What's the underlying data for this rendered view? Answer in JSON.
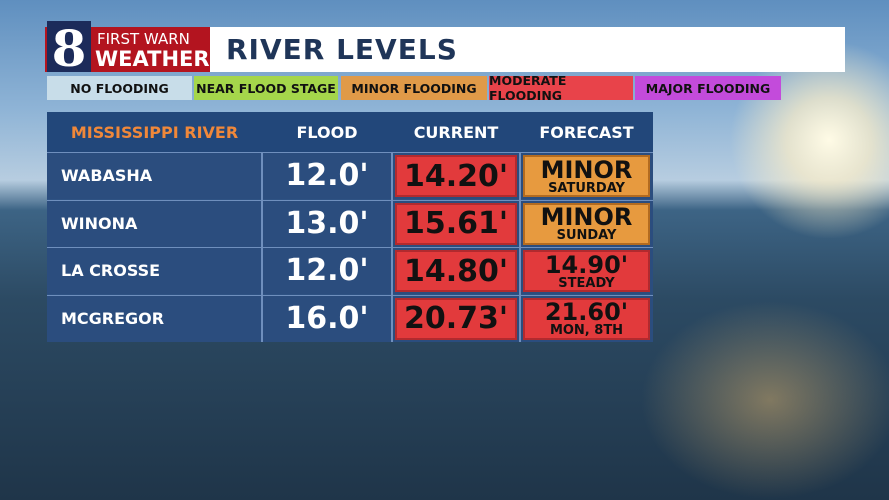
{
  "logo": {
    "number": "8",
    "line1": "FIRST WARN",
    "line2": "WEATHER"
  },
  "title": "RIVER LEVELS",
  "legend": [
    "NO FLOODING",
    "NEAR FLOOD STAGE",
    "MINOR FLOODING",
    "MODERATE FLOODING",
    "MAJOR FLOODING"
  ],
  "table": {
    "header": [
      "MISSISSIPPI RIVER",
      "FLOOD",
      "CURRENT",
      "FORECAST"
    ],
    "rows": [
      {
        "location": "WABASHA",
        "flood": "12.0'",
        "current": "14.20'",
        "forecast": "MINOR",
        "forecast_detail": "SATURDAY"
      },
      {
        "location": "WINONA",
        "flood": "13.0'",
        "current": "15.61'",
        "forecast": "MINOR",
        "forecast_detail": "SUNDAY"
      },
      {
        "location": "LA CROSSE",
        "flood": "12.0'",
        "current": "14.80'",
        "forecast": "14.90'",
        "forecast_detail": "STEADY"
      },
      {
        "location": "MCGREGOR",
        "flood": "16.0'",
        "current": "20.73'",
        "forecast": "21.60'",
        "forecast_detail": "MON, 8TH"
      }
    ]
  }
}
